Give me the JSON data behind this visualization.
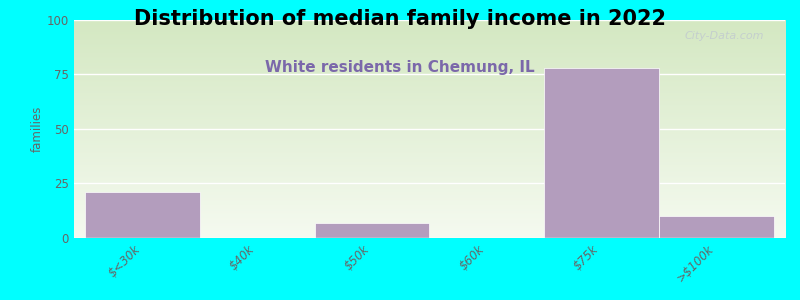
{
  "title": "Distribution of median family income in 2022",
  "subtitle": "White residents in Chemung, IL",
  "categories": [
    "$<30k",
    "$40k",
    "$50k",
    "$60k",
    "$75k",
    ">$100k"
  ],
  "bin_edges": [
    0,
    1,
    2,
    3,
    4,
    5,
    6
  ],
  "values": [
    21,
    0,
    7,
    0,
    78,
    10
  ],
  "bar_color": "#b39dbd",
  "bg_color": "#00ffff",
  "plot_bg_gradient_top": "#d4e8c2",
  "plot_bg_gradient_bottom": "#f5faf0",
  "ylabel": "families",
  "ylim": [
    0,
    100
  ],
  "yticks": [
    0,
    25,
    50,
    75,
    100
  ],
  "title_fontsize": 15,
  "subtitle_fontsize": 11,
  "subtitle_color": "#7b68aa",
  "watermark": "City-Data.com",
  "tick_label_color": "#666666",
  "grid_color": "#ffffff"
}
